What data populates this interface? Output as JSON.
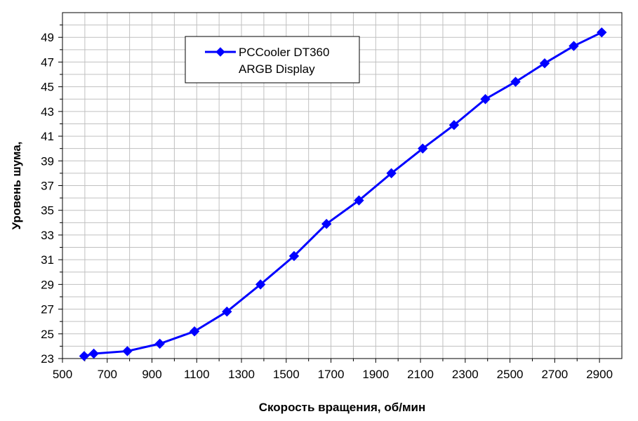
{
  "chart_data": {
    "type": "line",
    "xlabel": "Скорость вращения, об/мин",
    "ylabel": "Уровень шума,",
    "xlim": [
      500,
      3000
    ],
    "ylim": [
      23,
      51
    ],
    "x_ticks": [
      "500",
      "700",
      "900",
      "1100",
      "1300",
      "1500",
      "1700",
      "1900",
      "2100",
      "2300",
      "2500",
      "2700",
      "2900"
    ],
    "y_ticks": [
      "23",
      "25",
      "27",
      "29",
      "31",
      "33",
      "35",
      "37",
      "39",
      "41",
      "43",
      "45",
      "47",
      "49"
    ],
    "grid": true,
    "legend_position": "top-left",
    "series": [
      {
        "name": "PCCooler DT360 ARGB Display",
        "legend_lines": [
          "PCCooler DT360",
          "ARGB Display"
        ],
        "color": "#0000ff",
        "marker": "diamond",
        "x": [
          597,
          640,
          790,
          935,
          1090,
          1235,
          1385,
          1535,
          1680,
          1825,
          1970,
          2110,
          2250,
          2390,
          2525,
          2655,
          2785,
          2910
        ],
        "y": [
          23.2,
          23.4,
          23.6,
          24.2,
          25.2,
          26.8,
          29.0,
          31.3,
          33.9,
          35.8,
          38.0,
          40.0,
          41.9,
          44.0,
          45.4,
          46.9,
          48.3,
          49.4
        ]
      }
    ]
  }
}
